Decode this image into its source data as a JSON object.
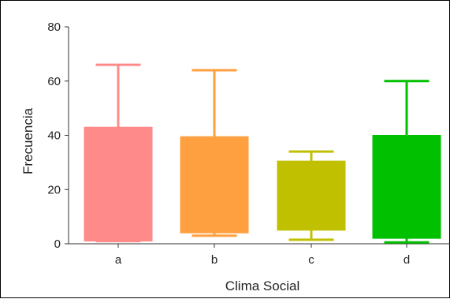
{
  "chart_data": {
    "type": "boxplot",
    "title": "",
    "xlabel": "Clima Social",
    "ylabel": "Frecuencia",
    "ylim": [
      0,
      80
    ],
    "yticks": [
      0,
      20,
      40,
      60,
      80
    ],
    "categories": [
      "a",
      "b",
      "c",
      "d"
    ],
    "boxes": [
      {
        "category": "a",
        "min": 1,
        "q1": 1,
        "median": 1,
        "q3": 43,
        "max": 66,
        "color": "#FF8A8A"
      },
      {
        "category": "b",
        "min": 3,
        "q1": 4,
        "median": 4,
        "q3": 39.5,
        "max": 64,
        "color": "#FFA040"
      },
      {
        "category": "c",
        "min": 1.5,
        "q1": 5,
        "median": 5,
        "q3": 30.5,
        "max": 34,
        "color": "#C0C000"
      },
      {
        "category": "d",
        "min": 0.5,
        "q1": 2,
        "median": 2,
        "q3": 40,
        "max": 60,
        "color": "#00C000"
      }
    ],
    "grid": false,
    "legend": "none"
  }
}
